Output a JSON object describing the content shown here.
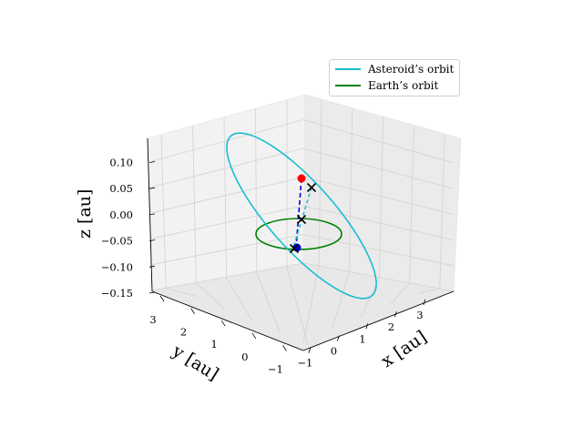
{
  "chart_data": {
    "type": "line",
    "projection": "3d",
    "xlabel": "x [au]",
    "ylabel": "y [au]",
    "zlabel": "z [au]",
    "x_ticks": [
      "−1",
      "0",
      "1",
      "2",
      "3"
    ],
    "y_ticks": [
      "−1",
      "0",
      "1",
      "2",
      "3"
    ],
    "z_ticks": [
      "−0.15",
      "−0.10",
      "−0.05",
      "0.00",
      "0.05",
      "0.10"
    ],
    "xlim": [
      -1.4,
      3.6
    ],
    "ylim": [
      -1.4,
      3.4
    ],
    "zlim": [
      -0.15,
      0.14
    ],
    "legend_position": "top-right",
    "series": [
      {
        "name": "Asteroid’s orbit",
        "color": "#17becf",
        "shape": "ellipse",
        "center": [
          1.1,
          1.1,
          0.0
        ],
        "semi_axes": [
          2.0,
          1.7
        ],
        "inclination_z_amplitude": 0.13
      },
      {
        "name": "Earth’s orbit",
        "color": "#008000",
        "shape": "circle",
        "center": [
          0,
          0,
          0
        ],
        "radius": 1.0
      }
    ],
    "markers": [
      {
        "type": "point",
        "color": "#ff0000",
        "position": [
          -0.35,
          1.0,
          0.07
        ]
      },
      {
        "type": "point",
        "color": "#0000cd",
        "position": [
          0.15,
          1.3,
          -0.07
        ]
      },
      {
        "type": "x",
        "color": "#000000",
        "position": [
          -0.4,
          0.9,
          0.05
        ]
      },
      {
        "type": "x",
        "color": "#000000",
        "position": [
          0.0,
          0.0,
          0.0
        ]
      },
      {
        "type": "x",
        "color": "#000000",
        "position": [
          0.1,
          1.0,
          -0.07
        ]
      }
    ],
    "connectors": [
      {
        "style": "dashed",
        "color": "#0000cd",
        "from": "red point",
        "to": "blue point"
      },
      {
        "style": "dashed",
        "color": "#17becf",
        "from": "x upper",
        "to": "x lower"
      }
    ]
  }
}
